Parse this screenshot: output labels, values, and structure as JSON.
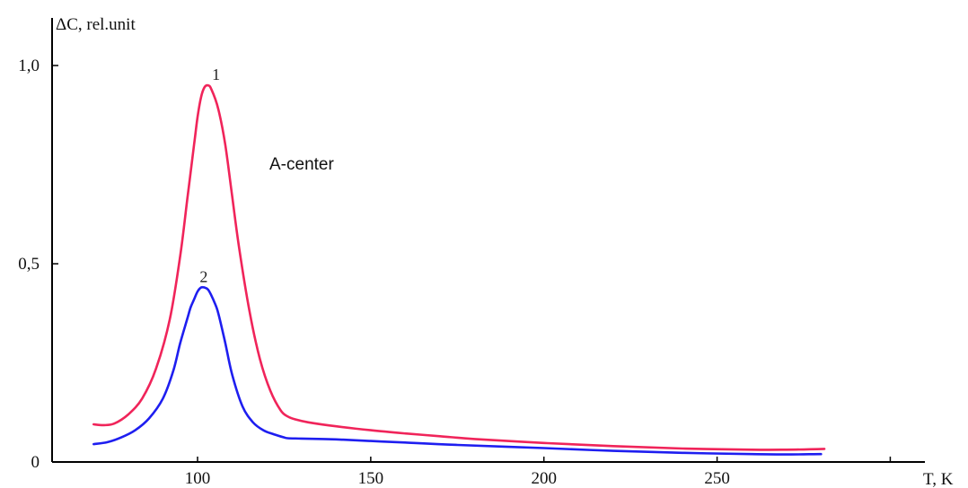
{
  "chart_data": {
    "type": "line",
    "title": "",
    "xlabel": "T, K",
    "ylabel": "ΔC, rel.unit",
    "xlim": [
      58,
      310
    ],
    "ylim": [
      0,
      1.12
    ],
    "x_ticks": [
      100,
      150,
      200,
      250
    ],
    "x_tick_labels": [
      "100",
      "150",
      "200",
      "250"
    ],
    "extra_x_tick_marks": [
      300
    ],
    "y_ticks": [
      0,
      0.5,
      1.0
    ],
    "y_tick_labels": [
      "0",
      "0,5",
      "1,0"
    ],
    "annotation": "A-center",
    "series": [
      {
        "name": "1",
        "color": "#f0245a",
        "x": [
          70,
          73,
          76,
          80,
          84,
          88,
          92,
          95,
          97,
          99,
          100,
          101,
          102,
          103,
          104,
          106,
          108,
          110,
          112,
          115,
          118,
          121,
          124,
          126,
          128,
          132,
          140,
          150,
          160,
          170,
          180,
          200,
          220,
          240,
          260,
          270,
          281
        ],
        "y": [
          0.095,
          0.093,
          0.097,
          0.12,
          0.16,
          0.235,
          0.36,
          0.52,
          0.66,
          0.8,
          0.87,
          0.92,
          0.945,
          0.95,
          0.94,
          0.89,
          0.8,
          0.67,
          0.54,
          0.38,
          0.26,
          0.18,
          0.13,
          0.115,
          0.108,
          0.1,
          0.09,
          0.08,
          0.072,
          0.065,
          0.058,
          0.048,
          0.04,
          0.034,
          0.031,
          0.031,
          0.033
        ]
      },
      {
        "name": "2",
        "color": "#1e1ef0",
        "x": [
          70,
          74,
          78,
          82,
          86,
          90,
          93,
          95,
          97,
          98,
          99,
          100,
          101,
          102,
          103,
          104,
          105,
          106,
          108,
          110,
          113,
          116,
          119,
          122,
          125,
          126,
          130,
          140,
          150,
          160,
          175,
          200,
          220,
          240,
          260,
          270,
          280
        ],
        "y": [
          0.045,
          0.05,
          0.062,
          0.08,
          0.11,
          0.16,
          0.23,
          0.3,
          0.36,
          0.39,
          0.41,
          0.43,
          0.44,
          0.44,
          0.435,
          0.42,
          0.4,
          0.375,
          0.3,
          0.22,
          0.14,
          0.1,
          0.08,
          0.07,
          0.062,
          0.06,
          0.059,
          0.057,
          0.053,
          0.049,
          0.043,
          0.035,
          0.028,
          0.023,
          0.02,
          0.019,
          0.02
        ]
      }
    ]
  }
}
